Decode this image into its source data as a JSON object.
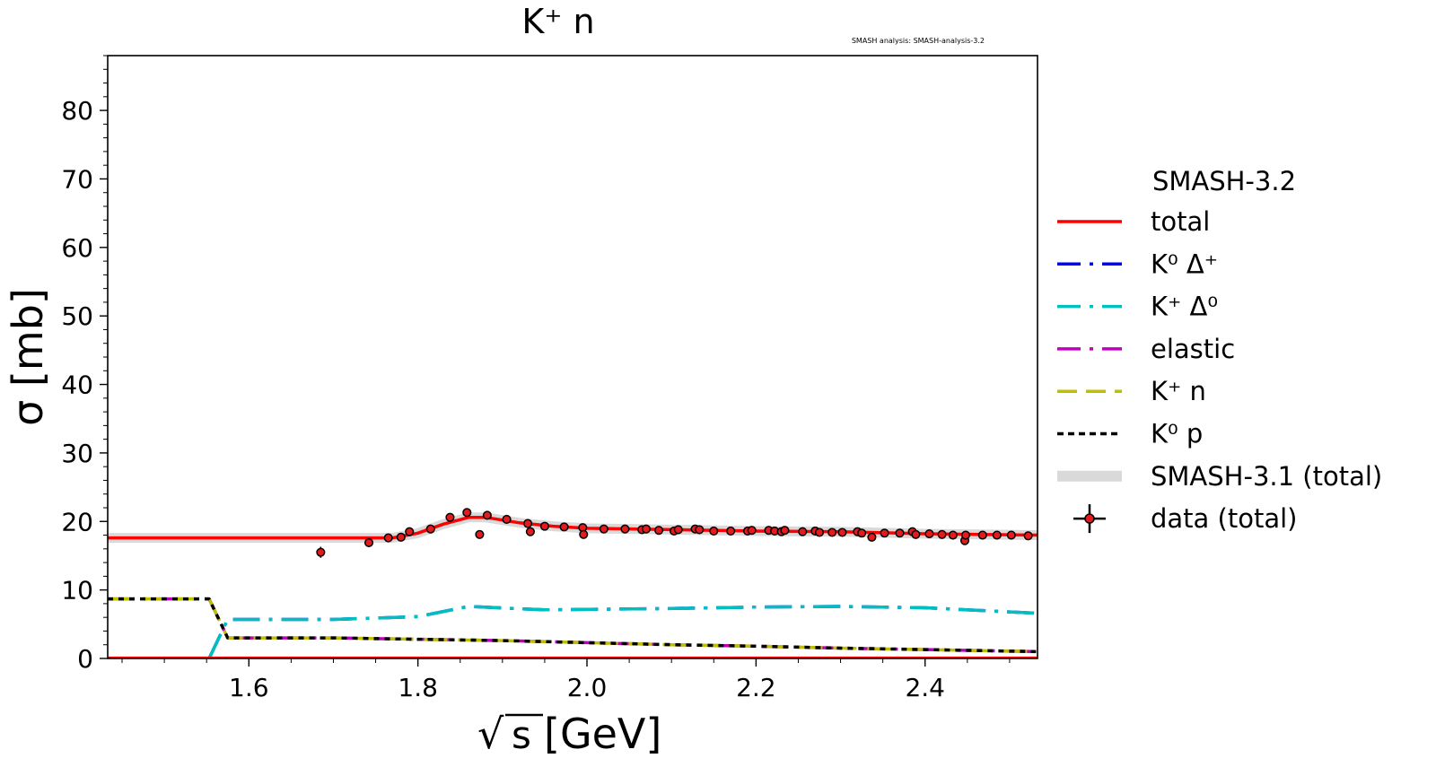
{
  "chart_data": {
    "type": "line",
    "title": "K⁺ n",
    "watermark": "SMASH analysis: SMASH-analysis-3.2",
    "xlabel_sqrt": "√",
    "xlabel_s": "s",
    "xlabel_unit": "[GeV]",
    "ylabel": "σ [mb]",
    "xlim": [
      1.433,
      2.533
    ],
    "ylim": [
      0,
      88
    ],
    "xticks": [
      1.6,
      1.8,
      2.0,
      2.2,
      2.4
    ],
    "xtick_labels": [
      "1.6",
      "1.8",
      "2.0",
      "2.2",
      "2.4"
    ],
    "yticks": [
      0,
      10,
      20,
      30,
      40,
      50,
      60,
      70,
      80
    ],
    "ytick_labels": [
      "0",
      "10",
      "20",
      "30",
      "40",
      "50",
      "60",
      "70",
      "80"
    ],
    "legend_title": "SMASH-3.2",
    "legend_position": "right, outside",
    "series": [
      {
        "name": "total",
        "style": "solid",
        "color": "#ff0000",
        "x": [
          1.433,
          1.77,
          1.8,
          1.83,
          1.86,
          1.88,
          1.92,
          1.96,
          2.0,
          2.1,
          2.2,
          2.3,
          2.4,
          2.533
        ],
        "y": [
          17.6,
          17.6,
          18.3,
          19.6,
          20.6,
          20.6,
          19.8,
          19.3,
          19.0,
          18.8,
          18.6,
          18.5,
          18.2,
          18.0
        ]
      },
      {
        "name": "K⁰ Δ⁺",
        "style": "dashdot",
        "color": "#0000ff",
        "x": [
          1.553,
          1.575,
          1.7,
          1.8,
          1.86,
          1.95,
          2.1,
          2.2,
          2.3,
          2.4,
          2.533
        ],
        "y": [
          0,
          5.7,
          5.7,
          6.1,
          7.6,
          7.1,
          7.3,
          7.5,
          7.6,
          7.4,
          6.6
        ]
      },
      {
        "name": "K⁺ Δ⁰",
        "style": "dashdot",
        "color": "#00bfbf",
        "x": [
          1.553,
          1.575,
          1.7,
          1.8,
          1.86,
          1.95,
          2.1,
          2.2,
          2.3,
          2.4,
          2.533
        ],
        "y": [
          0,
          5.7,
          5.7,
          6.1,
          7.6,
          7.1,
          7.3,
          7.5,
          7.6,
          7.4,
          6.6
        ]
      },
      {
        "name": "elastic",
        "style": "dashdot",
        "color": "#bf00bf",
        "x": [
          1.433,
          1.553,
          1.575,
          1.7,
          1.8,
          1.9,
          2.0,
          2.1,
          2.2,
          2.3,
          2.4,
          2.533
        ],
        "y": [
          8.7,
          8.7,
          3.0,
          3.0,
          2.8,
          2.6,
          2.3,
          2.0,
          1.8,
          1.5,
          1.3,
          1.0
        ]
      },
      {
        "name": "K⁺ n",
        "style": "dashed",
        "color": "#bfbf00",
        "x": [
          1.433,
          1.553,
          1.575,
          1.7,
          1.8,
          1.9,
          2.0,
          2.1,
          2.2,
          2.3,
          2.4,
          2.533
        ],
        "y": [
          8.7,
          8.7,
          3.0,
          3.0,
          2.8,
          2.6,
          2.3,
          2.0,
          1.8,
          1.5,
          1.3,
          1.0
        ]
      },
      {
        "name": "K⁰ p",
        "style": "dotted",
        "color": "#000000",
        "x": [
          1.433,
          1.553,
          1.575,
          1.7,
          1.8,
          1.9,
          2.0,
          2.1,
          2.2,
          2.3,
          2.4,
          2.533
        ],
        "y": [
          8.7,
          8.7,
          3.0,
          3.0,
          2.8,
          2.6,
          2.3,
          2.0,
          1.8,
          1.5,
          1.3,
          1.0
        ]
      },
      {
        "name": "SMASH-3.1 (total)",
        "style": "band",
        "color": "#d9d9d9",
        "x": [
          1.433,
          1.77,
          1.8,
          1.83,
          1.86,
          1.88,
          1.92,
          1.96,
          2.0,
          2.1,
          2.2,
          2.3,
          2.4,
          2.533
        ],
        "y": [
          17.6,
          17.6,
          18.3,
          19.6,
          20.6,
          20.6,
          19.8,
          19.3,
          19.0,
          18.8,
          18.6,
          18.5,
          18.2,
          18.0
        ]
      }
    ],
    "data_points": {
      "name": "data (total)",
      "color": "#e41a1c",
      "points": [
        [
          1.685,
          15.5,
          0.8
        ],
        [
          1.742,
          16.9,
          0.4
        ],
        [
          1.765,
          17.6,
          0.4
        ],
        [
          1.78,
          17.7,
          0.4
        ],
        [
          1.79,
          18.5,
          0.4
        ],
        [
          1.815,
          18.9,
          0.4
        ],
        [
          1.838,
          20.6,
          0.4
        ],
        [
          1.858,
          21.3,
          0.4
        ],
        [
          1.873,
          18.1,
          0.5
        ],
        [
          1.882,
          20.9,
          0.4
        ],
        [
          1.905,
          20.3,
          0.4
        ],
        [
          1.93,
          19.7,
          0.4
        ],
        [
          1.933,
          18.5,
          0.6
        ],
        [
          1.95,
          19.3,
          0.4
        ],
        [
          1.973,
          19.2,
          0.4
        ],
        [
          1.995,
          19.1,
          0.4
        ],
        [
          1.996,
          18.1,
          0.5
        ],
        [
          2.02,
          18.9,
          0.4
        ],
        [
          2.045,
          18.9,
          0.4
        ],
        [
          2.065,
          18.8,
          0.4
        ],
        [
          2.07,
          18.9,
          0.4
        ],
        [
          2.085,
          18.7,
          0.4
        ],
        [
          2.103,
          18.6,
          0.5
        ],
        [
          2.108,
          18.8,
          0.4
        ],
        [
          2.128,
          18.9,
          0.4
        ],
        [
          2.133,
          18.8,
          0.4
        ],
        [
          2.15,
          18.6,
          0.4
        ],
        [
          2.17,
          18.6,
          0.4
        ],
        [
          2.19,
          18.6,
          0.4
        ],
        [
          2.195,
          18.7,
          0.4
        ],
        [
          2.215,
          18.7,
          0.4
        ],
        [
          2.222,
          18.6,
          0.4
        ],
        [
          2.23,
          18.5,
          0.4
        ],
        [
          2.234,
          18.7,
          0.4
        ],
        [
          2.255,
          18.5,
          0.4
        ],
        [
          2.27,
          18.6,
          0.4
        ],
        [
          2.275,
          18.4,
          0.4
        ],
        [
          2.29,
          18.4,
          0.4
        ],
        [
          2.302,
          18.4,
          0.4
        ],
        [
          2.32,
          18.5,
          0.4
        ],
        [
          2.325,
          18.3,
          0.4
        ],
        [
          2.337,
          17.7,
          0.6
        ],
        [
          2.352,
          18.3,
          0.4
        ],
        [
          2.37,
          18.3,
          0.4
        ],
        [
          2.385,
          18.5,
          0.4
        ],
        [
          2.389,
          18.1,
          0.4
        ],
        [
          2.405,
          18.2,
          0.4
        ],
        [
          2.42,
          18.1,
          0.4
        ],
        [
          2.433,
          18.0,
          0.4
        ],
        [
          2.447,
          17.2,
          0.6
        ],
        [
          2.448,
          18.0,
          0.4
        ],
        [
          2.468,
          18.0,
          0.4
        ],
        [
          2.485,
          18.0,
          0.4
        ],
        [
          2.502,
          18.0,
          0.4
        ],
        [
          2.522,
          17.9,
          0.4
        ]
      ]
    }
  }
}
